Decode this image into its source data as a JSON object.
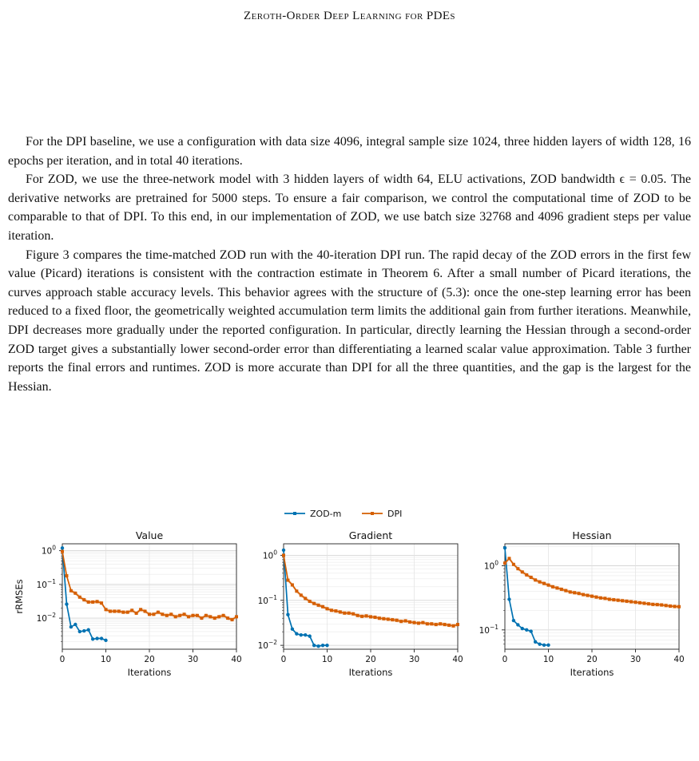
{
  "header": {
    "running_title": "Zeroth-Order Deep Learning for PDEs"
  },
  "paragraphs": [
    "For the DPI baseline, we use a configuration with data size 4096, integral sample size 1024, three hidden layers of width 128, 16 epochs per iteration, and in total 40 iterations.",
    "For ZOD, we use the three-network model with 3 hidden layers of width 64, ELU activations, ZOD bandwidth ϵ = 0.05. The derivative networks are pretrained for 5000 steps. To ensure a fair comparison, we control the computational time of ZOD to be comparable to that of DPI. To this end, in our implementation of ZOD, we use batch size 32768 and 4096 gradient steps per value iteration.",
    "Figure 3 compares the time-matched ZOD run with the 40-iteration DPI run. The rapid decay of the ZOD errors in the first few value (Picard) iterations is consistent with the contraction estimate in Theorem 6. After a small number of Picard iterations, the curves approach stable accuracy levels. This behavior agrees with the structure of (5.3): once the one-step learning error has been reduced to a fixed floor, the geometrically weighted accumulation term limits the additional gain from further iterations. Meanwhile, DPI decreases more gradually under the reported configuration. In particular, directly learning the Hessian through a second-order ZOD target gives a substantially lower second-order error than differentiating a learned scalar value approximation. Table 3 further reports the final errors and runtimes. ZOD is more accurate than DPI for all the three quantities, and the gap is the largest for the Hessian."
  ],
  "figure": {
    "legend": [
      "ZOD-m",
      "DPI"
    ],
    "colors": {
      "ZOD-m": "#0072b2",
      "DPI": "#d55e00"
    },
    "ylabel": "rRMSEs",
    "xlabel": "Iterations"
  },
  "chart_data": [
    {
      "type": "line",
      "title": "Value",
      "xlabel": "Iterations",
      "ylabel": "rRMSEs",
      "y_scale": "log",
      "xlim": [
        0,
        40
      ],
      "ylim": [
        0.0012,
        1.6
      ],
      "xticks": [
        "0",
        "10",
        "20",
        "30",
        "40"
      ],
      "yticks": [
        {
          "value": 1,
          "base": "10",
          "exp": "0"
        },
        {
          "value": 0.1,
          "base": "10",
          "exp": "−1"
        },
        {
          "value": 0.01,
          "base": "10",
          "exp": "−2"
        }
      ],
      "grid": true,
      "legend": "top-center",
      "series": [
        {
          "name": "ZOD-m",
          "x": [
            0,
            1,
            2,
            3,
            4,
            5,
            6,
            7,
            8,
            9,
            10
          ],
          "y": [
            1.2,
            0.026,
            0.0055,
            0.0065,
            0.004,
            0.0042,
            0.0045,
            0.0024,
            0.0025,
            0.0025,
            0.0022
          ]
        },
        {
          "name": "DPI",
          "x": [
            0,
            1,
            2,
            3,
            4,
            5,
            6,
            7,
            8,
            9,
            10,
            11,
            12,
            13,
            14,
            15,
            16,
            17,
            18,
            19,
            20,
            21,
            22,
            23,
            24,
            25,
            26,
            27,
            28,
            29,
            30,
            31,
            32,
            33,
            34,
            35,
            36,
            37,
            38,
            39,
            40
          ],
          "y": [
            0.95,
            0.18,
            0.065,
            0.055,
            0.042,
            0.035,
            0.03,
            0.03,
            0.031,
            0.028,
            0.018,
            0.016,
            0.016,
            0.016,
            0.015,
            0.015,
            0.017,
            0.014,
            0.018,
            0.016,
            0.013,
            0.013,
            0.015,
            0.013,
            0.012,
            0.013,
            0.011,
            0.012,
            0.013,
            0.011,
            0.012,
            0.012,
            0.01,
            0.012,
            0.011,
            0.01,
            0.011,
            0.012,
            0.01,
            0.009,
            0.011
          ]
        }
      ]
    },
    {
      "type": "line",
      "title": "Gradient",
      "xlabel": "Iterations",
      "y_scale": "log",
      "xlim": [
        0,
        40
      ],
      "ylim": [
        0.0082,
        1.8
      ],
      "xticks": [
        "0",
        "10",
        "20",
        "30",
        "40"
      ],
      "yticks": [
        {
          "value": 1,
          "base": "10",
          "exp": "0"
        },
        {
          "value": 0.1,
          "base": "10",
          "exp": "−1"
        },
        {
          "value": 0.01,
          "base": "10",
          "exp": "−2"
        }
      ],
      "grid": true,
      "series": [
        {
          "name": "ZOD-m",
          "x": [
            0,
            1,
            2,
            3,
            4,
            5,
            6,
            7,
            8,
            9,
            10
          ],
          "y": [
            1.3,
            0.048,
            0.023,
            0.018,
            0.017,
            0.017,
            0.016,
            0.01,
            0.0096,
            0.01,
            0.01
          ]
        },
        {
          "name": "DPI",
          "x": [
            0,
            1,
            2,
            3,
            4,
            5,
            6,
            7,
            8,
            9,
            10,
            11,
            12,
            13,
            14,
            15,
            16,
            17,
            18,
            19,
            20,
            21,
            22,
            23,
            24,
            25,
            26,
            27,
            28,
            29,
            30,
            31,
            32,
            33,
            34,
            35,
            36,
            37,
            38,
            39,
            40
          ],
          "y": [
            1.0,
            0.28,
            0.22,
            0.16,
            0.13,
            0.11,
            0.095,
            0.085,
            0.078,
            0.072,
            0.065,
            0.06,
            0.058,
            0.055,
            0.052,
            0.052,
            0.05,
            0.046,
            0.044,
            0.045,
            0.043,
            0.042,
            0.04,
            0.039,
            0.038,
            0.037,
            0.036,
            0.034,
            0.035,
            0.033,
            0.032,
            0.031,
            0.032,
            0.03,
            0.03,
            0.029,
            0.03,
            0.029,
            0.028,
            0.027,
            0.029
          ]
        }
      ]
    },
    {
      "type": "line",
      "title": "Hessian",
      "xlabel": "Iterations",
      "y_scale": "log",
      "xlim": [
        0,
        40
      ],
      "ylim": [
        0.05,
        2.2
      ],
      "xticks": [
        "0",
        "10",
        "20",
        "30",
        "40"
      ],
      "yticks": [
        {
          "value": 1,
          "base": "10",
          "exp": "0"
        },
        {
          "value": 0.1,
          "base": "10",
          "exp": "−1"
        }
      ],
      "grid": true,
      "series": [
        {
          "name": "ZOD-m",
          "x": [
            0,
            1,
            2,
            3,
            4,
            5,
            6,
            7,
            8,
            9,
            10
          ],
          "y": [
            1.9,
            0.3,
            0.14,
            0.12,
            0.105,
            0.1,
            0.095,
            0.065,
            0.06,
            0.058,
            0.058
          ]
        },
        {
          "name": "DPI",
          "x": [
            0,
            1,
            2,
            3,
            4,
            5,
            6,
            7,
            8,
            9,
            10,
            11,
            12,
            13,
            14,
            15,
            16,
            17,
            18,
            19,
            20,
            21,
            22,
            23,
            24,
            25,
            26,
            27,
            28,
            29,
            30,
            31,
            32,
            33,
            34,
            35,
            36,
            37,
            38,
            39,
            40
          ],
          "y": [
            1.1,
            1.3,
            1.05,
            0.9,
            0.8,
            0.72,
            0.66,
            0.6,
            0.56,
            0.53,
            0.5,
            0.47,
            0.45,
            0.43,
            0.41,
            0.39,
            0.38,
            0.37,
            0.355,
            0.345,
            0.335,
            0.325,
            0.315,
            0.31,
            0.3,
            0.295,
            0.29,
            0.285,
            0.28,
            0.275,
            0.27,
            0.265,
            0.26,
            0.255,
            0.25,
            0.248,
            0.245,
            0.24,
            0.235,
            0.232,
            0.23
          ]
        }
      ]
    }
  ]
}
